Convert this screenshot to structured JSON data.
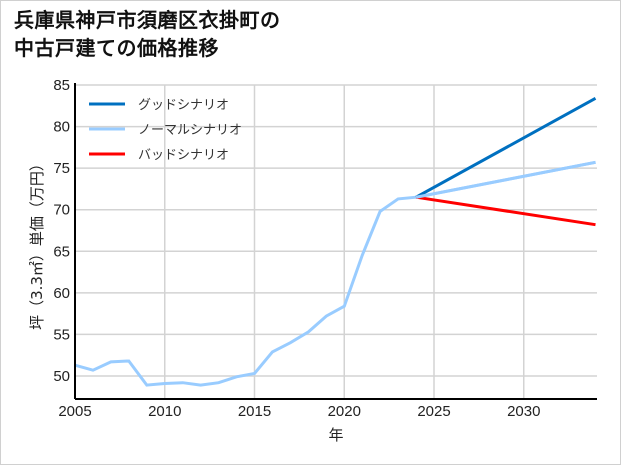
{
  "title_line1": "兵庫県神戸市須磨区衣掛町の",
  "title_line2": "中古戸建ての価格推移",
  "chart_data": {
    "type": "line",
    "title": "兵庫県神戸市須磨区衣掛町の中古戸建ての価格推移",
    "xlabel": "年",
    "ylabel": "坪（3.3㎡）単価（万円）",
    "xlim": [
      2005,
      2034
    ],
    "ylim": [
      47.2,
      85
    ],
    "xticks": [
      2005,
      2010,
      2015,
      2020,
      2025,
      2030
    ],
    "yticks": [
      50,
      55,
      60,
      65,
      70,
      75,
      80,
      85
    ],
    "grid": true,
    "legend_position": "upper left",
    "series": [
      {
        "name": "グッドシナリオ",
        "color": "#0070c0",
        "x": [
          2024,
          2034
        ],
        "values": [
          71.5,
          83.4
        ]
      },
      {
        "name": "ノーマルシナリオ",
        "color": "#99ccff",
        "x": [
          2005,
          2006,
          2007,
          2008,
          2009,
          2010,
          2011,
          2012,
          2013,
          2014,
          2015,
          2016,
          2017,
          2018,
          2019,
          2020,
          2021,
          2022,
          2023,
          2024,
          2034
        ],
        "values": [
          51.3,
          50.7,
          51.7,
          51.8,
          48.9,
          49.1,
          49.2,
          48.9,
          49.2,
          49.9,
          50.3,
          52.9,
          54.0,
          55.3,
          57.2,
          58.4,
          64.5,
          69.8,
          71.3,
          71.5,
          75.7
        ]
      },
      {
        "name": "バッドシナリオ",
        "color": "#ff0000",
        "x": [
          2024,
          2034
        ],
        "values": [
          71.5,
          68.2
        ]
      }
    ]
  }
}
